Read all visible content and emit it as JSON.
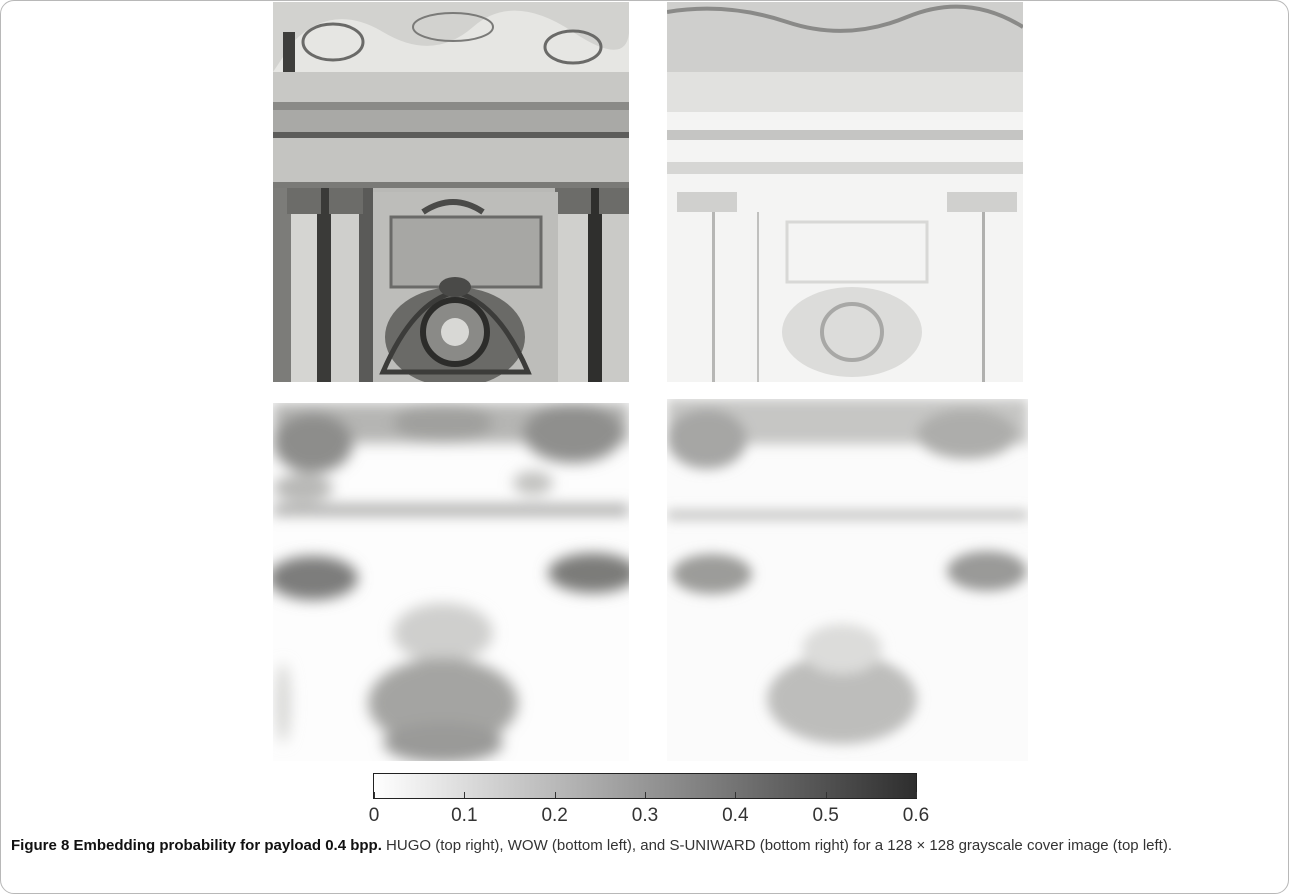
{
  "colorbar": {
    "ticks": [
      "0",
      "0.1",
      "0.2",
      "0.3",
      "0.4",
      "0.5",
      "0.6"
    ],
    "min": 0,
    "max": 0.6,
    "gradient_from": "#ffffff",
    "gradient_to": "#2e2e2e"
  },
  "caption": {
    "label": "Figure 8 Embedding probability for payload 0.4 bpp.",
    "text": "HUGO (top right), WOW (bottom left), and S-UNIWARD (bottom right) for a 128 × 128 grayscale cover image (top left)."
  }
}
